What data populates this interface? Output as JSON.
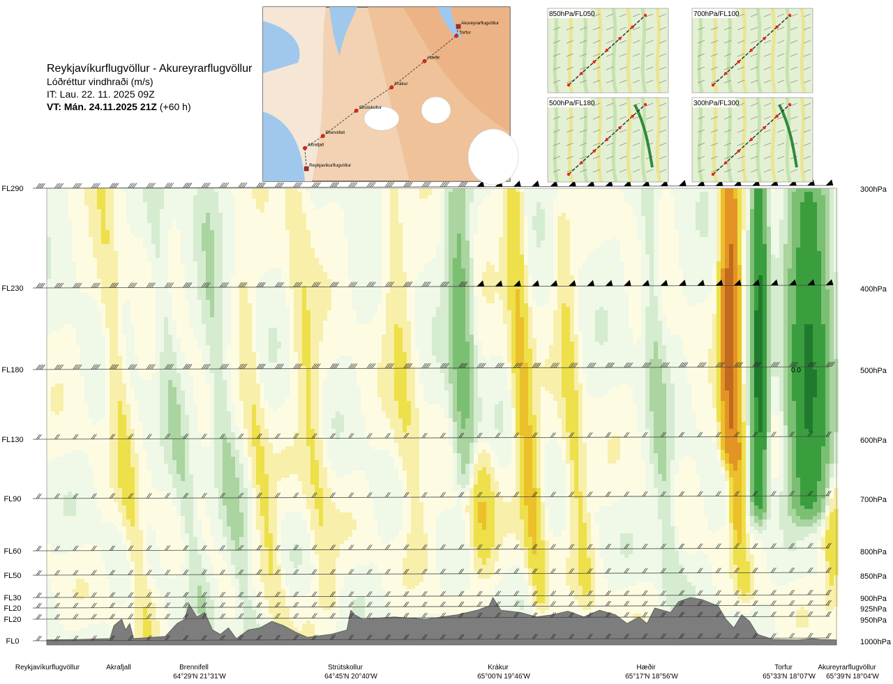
{
  "header": {
    "route": "Reykjavíkurflugvöllur - Akureyrarflugvöllur",
    "variable": "Lóðréttur vindhraði (m/s)",
    "issue_time": "IT: Lau. 22. 11. 2025 09Z",
    "valid_time": "VT: Mán. 24.11.2025 21Z",
    "lead": "(+60 h)"
  },
  "map": {
    "points": [
      {
        "name": "Akureyrarflugvöllur",
        "lon": -18.07,
        "lat": 65.65
      },
      {
        "name": "Torfur",
        "lon": -18.12,
        "lat": 65.55
      },
      {
        "name": "Hæðir",
        "lon": -18.93,
        "lat": 65.28
      },
      {
        "name": "Krákur",
        "lon": -19.77,
        "lat": 65.0
      },
      {
        "name": "Strútskollur",
        "lon": -20.67,
        "lat": 64.75
      },
      {
        "name": "Brennifell",
        "lon": -21.52,
        "lat": 64.48
      },
      {
        "name": "Akrafjall",
        "lon": -21.98,
        "lat": 64.35
      },
      {
        "name": "Reykjavíkurflugvöllur",
        "lon": -21.94,
        "lat": 64.13
      }
    ]
  },
  "insets": [
    {
      "label": "850hPa/FL050"
    },
    {
      "label": "700hPa/FL100"
    },
    {
      "label": "500hPa/FL180"
    },
    {
      "label": "300hPa/FL300"
    }
  ],
  "chart_data": {
    "type": "heatmap",
    "title": "Lóðréttur vindhraði (m/s)",
    "x_axis": "distance along route (fraction of route)",
    "y_axis": "pressure (hPa)",
    "ylim": [
      1000,
      300
    ],
    "levels": [
      {
        "fl": "FL290",
        "hpa": "300hPa",
        "p": 300
      },
      {
        "fl": "FL230",
        "hpa": "400hPa",
        "p": 400
      },
      {
        "fl": "FL180",
        "hpa": "500hPa",
        "p": 500
      },
      {
        "fl": "FL130",
        "hpa": "600hPa",
        "p": 600
      },
      {
        "fl": "FL90",
        "hpa": "700hPa",
        "p": 700
      },
      {
        "fl": "FL60",
        "hpa": "800hPa",
        "p": 800
      },
      {
        "fl": "FL50",
        "hpa": "850hPa",
        "p": 850
      },
      {
        "fl": "FL30",
        "hpa": "900hPa",
        "p": 900
      },
      {
        "fl": "FL20",
        "hpa": "925hPa",
        "p": 925
      },
      {
        "fl": "FL20",
        "hpa": "950hPa",
        "p": 950
      },
      {
        "fl": "FL0",
        "hpa": "1000hPa",
        "p": 1000
      }
    ],
    "stations": [
      {
        "name": "Reykjavíkurflugvöllur",
        "coord": "",
        "pos": 0.0
      },
      {
        "name": "Akrafjall",
        "coord": "",
        "pos": 0.09
      },
      {
        "name": "Brennifell",
        "coord": "64°29'N 21°31'W",
        "pos": 0.19
      },
      {
        "name": "Strútskollur",
        "coord": "64°45'N 20°40'W",
        "pos": 0.38
      },
      {
        "name": "Krákur",
        "coord": "65°00'N 19°46'W",
        "pos": 0.57
      },
      {
        "name": "Hæðir",
        "coord": "65°17'N 18°56'W",
        "pos": 0.76
      },
      {
        "name": "Torfur",
        "coord": "65°33'N 18°07'W",
        "pos": 0.92
      },
      {
        "name": "Akureyrarflugvöllur",
        "coord": "65°39'N 18°04'W",
        "pos": 1.0
      }
    ],
    "value_label": "0.0",
    "color_scale": [
      {
        "max": -2.0,
        "color": "#1f7a2e"
      },
      {
        "max": -1.0,
        "color": "#3a9e3f"
      },
      {
        "max": -0.5,
        "color": "#7bbf73"
      },
      {
        "max": -0.25,
        "color": "#aad4a0"
      },
      {
        "max": -0.1,
        "color": "#d5ecd0"
      },
      {
        "max": 0.0,
        "color": "#f0f8e8"
      },
      {
        "max": 0.1,
        "color": "#fdfce2"
      },
      {
        "max": 0.25,
        "color": "#f8efaa"
      },
      {
        "max": 0.5,
        "color": "#ede04a"
      },
      {
        "max": 1.0,
        "color": "#ecc02a"
      },
      {
        "max": 2.0,
        "color": "#e49424"
      },
      {
        "max": 99,
        "color": "#c06a1e"
      }
    ],
    "features": [
      {
        "pos": 0.1,
        "p_top": 300,
        "p_bot": 1000,
        "amp": 0.3,
        "width": 0.012,
        "tilt": 0.06
      },
      {
        "pos": 0.17,
        "p_top": 300,
        "p_bot": 1000,
        "amp": -0.25,
        "width": 0.012,
        "tilt": 0.07
      },
      {
        "pos": 0.23,
        "p_top": 320,
        "p_bot": 1000,
        "amp": -0.3,
        "width": 0.013,
        "tilt": 0.06
      },
      {
        "pos": 0.27,
        "p_top": 420,
        "p_bot": 1000,
        "amp": 0.3,
        "width": 0.012,
        "tilt": 0.06
      },
      {
        "pos": 0.34,
        "p_top": 300,
        "p_bot": 900,
        "amp": 0.28,
        "width": 0.015,
        "tilt": 0.05
      },
      {
        "pos": 0.46,
        "p_top": 300,
        "p_bot": 800,
        "amp": 0.25,
        "width": 0.016,
        "tilt": 0.05
      },
      {
        "pos": 0.53,
        "p_top": 300,
        "p_bot": 650,
        "amp": -0.7,
        "width": 0.014,
        "tilt": 0.02
      },
      {
        "pos": 0.55,
        "p_top": 650,
        "p_bot": 820,
        "amp": 0.55,
        "width": 0.016,
        "tilt": 0.01
      },
      {
        "pos": 0.61,
        "p_top": 300,
        "p_bot": 900,
        "amp": 0.65,
        "width": 0.012,
        "tilt": 0.04
      },
      {
        "pos": 0.67,
        "p_top": 350,
        "p_bot": 900,
        "amp": 0.35,
        "width": 0.012,
        "tilt": 0.04
      },
      {
        "pos": 0.78,
        "p_top": 300,
        "p_bot": 900,
        "amp": -0.3,
        "width": 0.012,
        "tilt": 0.04
      },
      {
        "pos": 0.865,
        "p_top": 300,
        "p_bot": 600,
        "amp": 2.6,
        "width": 0.01,
        "tilt": 0.0
      },
      {
        "pos": 0.875,
        "p_top": 600,
        "p_bot": 870,
        "amp": 1.4,
        "width": 0.01,
        "tilt": 0.02
      },
      {
        "pos": 0.902,
        "p_top": 300,
        "p_bot": 700,
        "amp": -2.4,
        "width": 0.009,
        "tilt": 0.0
      },
      {
        "pos": 0.88,
        "p_top": 700,
        "p_bot": 870,
        "amp": -0.9,
        "width": 0.01,
        "tilt": 0.0
      },
      {
        "pos": 0.965,
        "p_top": 320,
        "p_bot": 700,
        "amp": -2.2,
        "width": 0.022,
        "tilt": 0.0
      },
      {
        "pos": 0.995,
        "p_top": 700,
        "p_bot": 900,
        "amp": 0.4,
        "width": 0.01,
        "tilt": 0.0
      }
    ],
    "terrain": [
      [
        0.0,
        998
      ],
      [
        0.04,
        997
      ],
      [
        0.08,
        995
      ],
      [
        0.085,
        965
      ],
      [
        0.095,
        950
      ],
      [
        0.1,
        975
      ],
      [
        0.105,
        960
      ],
      [
        0.11,
        995
      ],
      [
        0.15,
        990
      ],
      [
        0.165,
        960
      ],
      [
        0.175,
        950
      ],
      [
        0.18,
        915
      ],
      [
        0.19,
        945
      ],
      [
        0.2,
        935
      ],
      [
        0.21,
        975
      ],
      [
        0.22,
        985
      ],
      [
        0.23,
        970
      ],
      [
        0.24,
        995
      ],
      [
        0.255,
        975
      ],
      [
        0.27,
        970
      ],
      [
        0.285,
        955
      ],
      [
        0.3,
        965
      ],
      [
        0.315,
        980
      ],
      [
        0.33,
        992
      ],
      [
        0.36,
        985
      ],
      [
        0.38,
        975
      ],
      [
        0.385,
        930
      ],
      [
        0.39,
        940
      ],
      [
        0.4,
        950
      ],
      [
        0.44,
        945
      ],
      [
        0.48,
        950
      ],
      [
        0.52,
        940
      ],
      [
        0.545,
        930
      ],
      [
        0.56,
        920
      ],
      [
        0.565,
        900
      ],
      [
        0.575,
        930
      ],
      [
        0.6,
        935
      ],
      [
        0.62,
        945
      ],
      [
        0.64,
        940
      ],
      [
        0.66,
        932
      ],
      [
        0.68,
        945
      ],
      [
        0.7,
        930
      ],
      [
        0.72,
        940
      ],
      [
        0.735,
        960
      ],
      [
        0.75,
        945
      ],
      [
        0.76,
        960
      ],
      [
        0.77,
        925
      ],
      [
        0.79,
        935
      ],
      [
        0.8,
        910
      ],
      [
        0.815,
        900
      ],
      [
        0.83,
        905
      ],
      [
        0.85,
        920
      ],
      [
        0.86,
        950
      ],
      [
        0.87,
        970
      ],
      [
        0.88,
        940
      ],
      [
        0.89,
        955
      ],
      [
        0.9,
        985
      ],
      [
        0.92,
        997
      ],
      [
        0.95,
        998
      ],
      [
        0.97,
        995
      ],
      [
        0.98,
        997
      ],
      [
        1.0,
        998
      ]
    ]
  }
}
